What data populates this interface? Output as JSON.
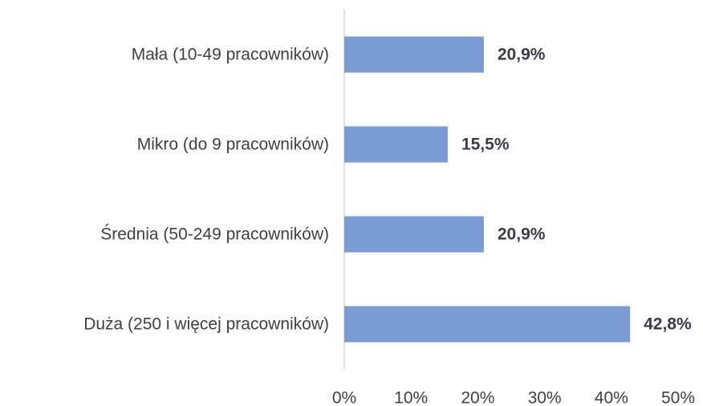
{
  "chart_data": {
    "type": "bar",
    "orientation": "horizontal",
    "categories": [
      "Mała (10-49 pracowników)",
      "Mikro (do 9 pracowników)",
      "Średnia (50-249 pracowników)",
      "Duża (250 i więcej pracowników)"
    ],
    "values": [
      20.9,
      15.5,
      20.9,
      42.8
    ],
    "value_labels": [
      "20,9%",
      "15,5%",
      "20,9%",
      "42,8%"
    ],
    "color": "#7a9bd3",
    "xlim": [
      0,
      50
    ],
    "xticks": [
      {
        "value": 0,
        "label": "0%"
      },
      {
        "value": 10,
        "label": "10%"
      },
      {
        "value": 20,
        "label": "20%"
      },
      {
        "value": 30,
        "label": "30%"
      },
      {
        "value": 40,
        "label": "40%"
      },
      {
        "value": 50,
        "label": "50%"
      }
    ],
    "grid": false
  }
}
